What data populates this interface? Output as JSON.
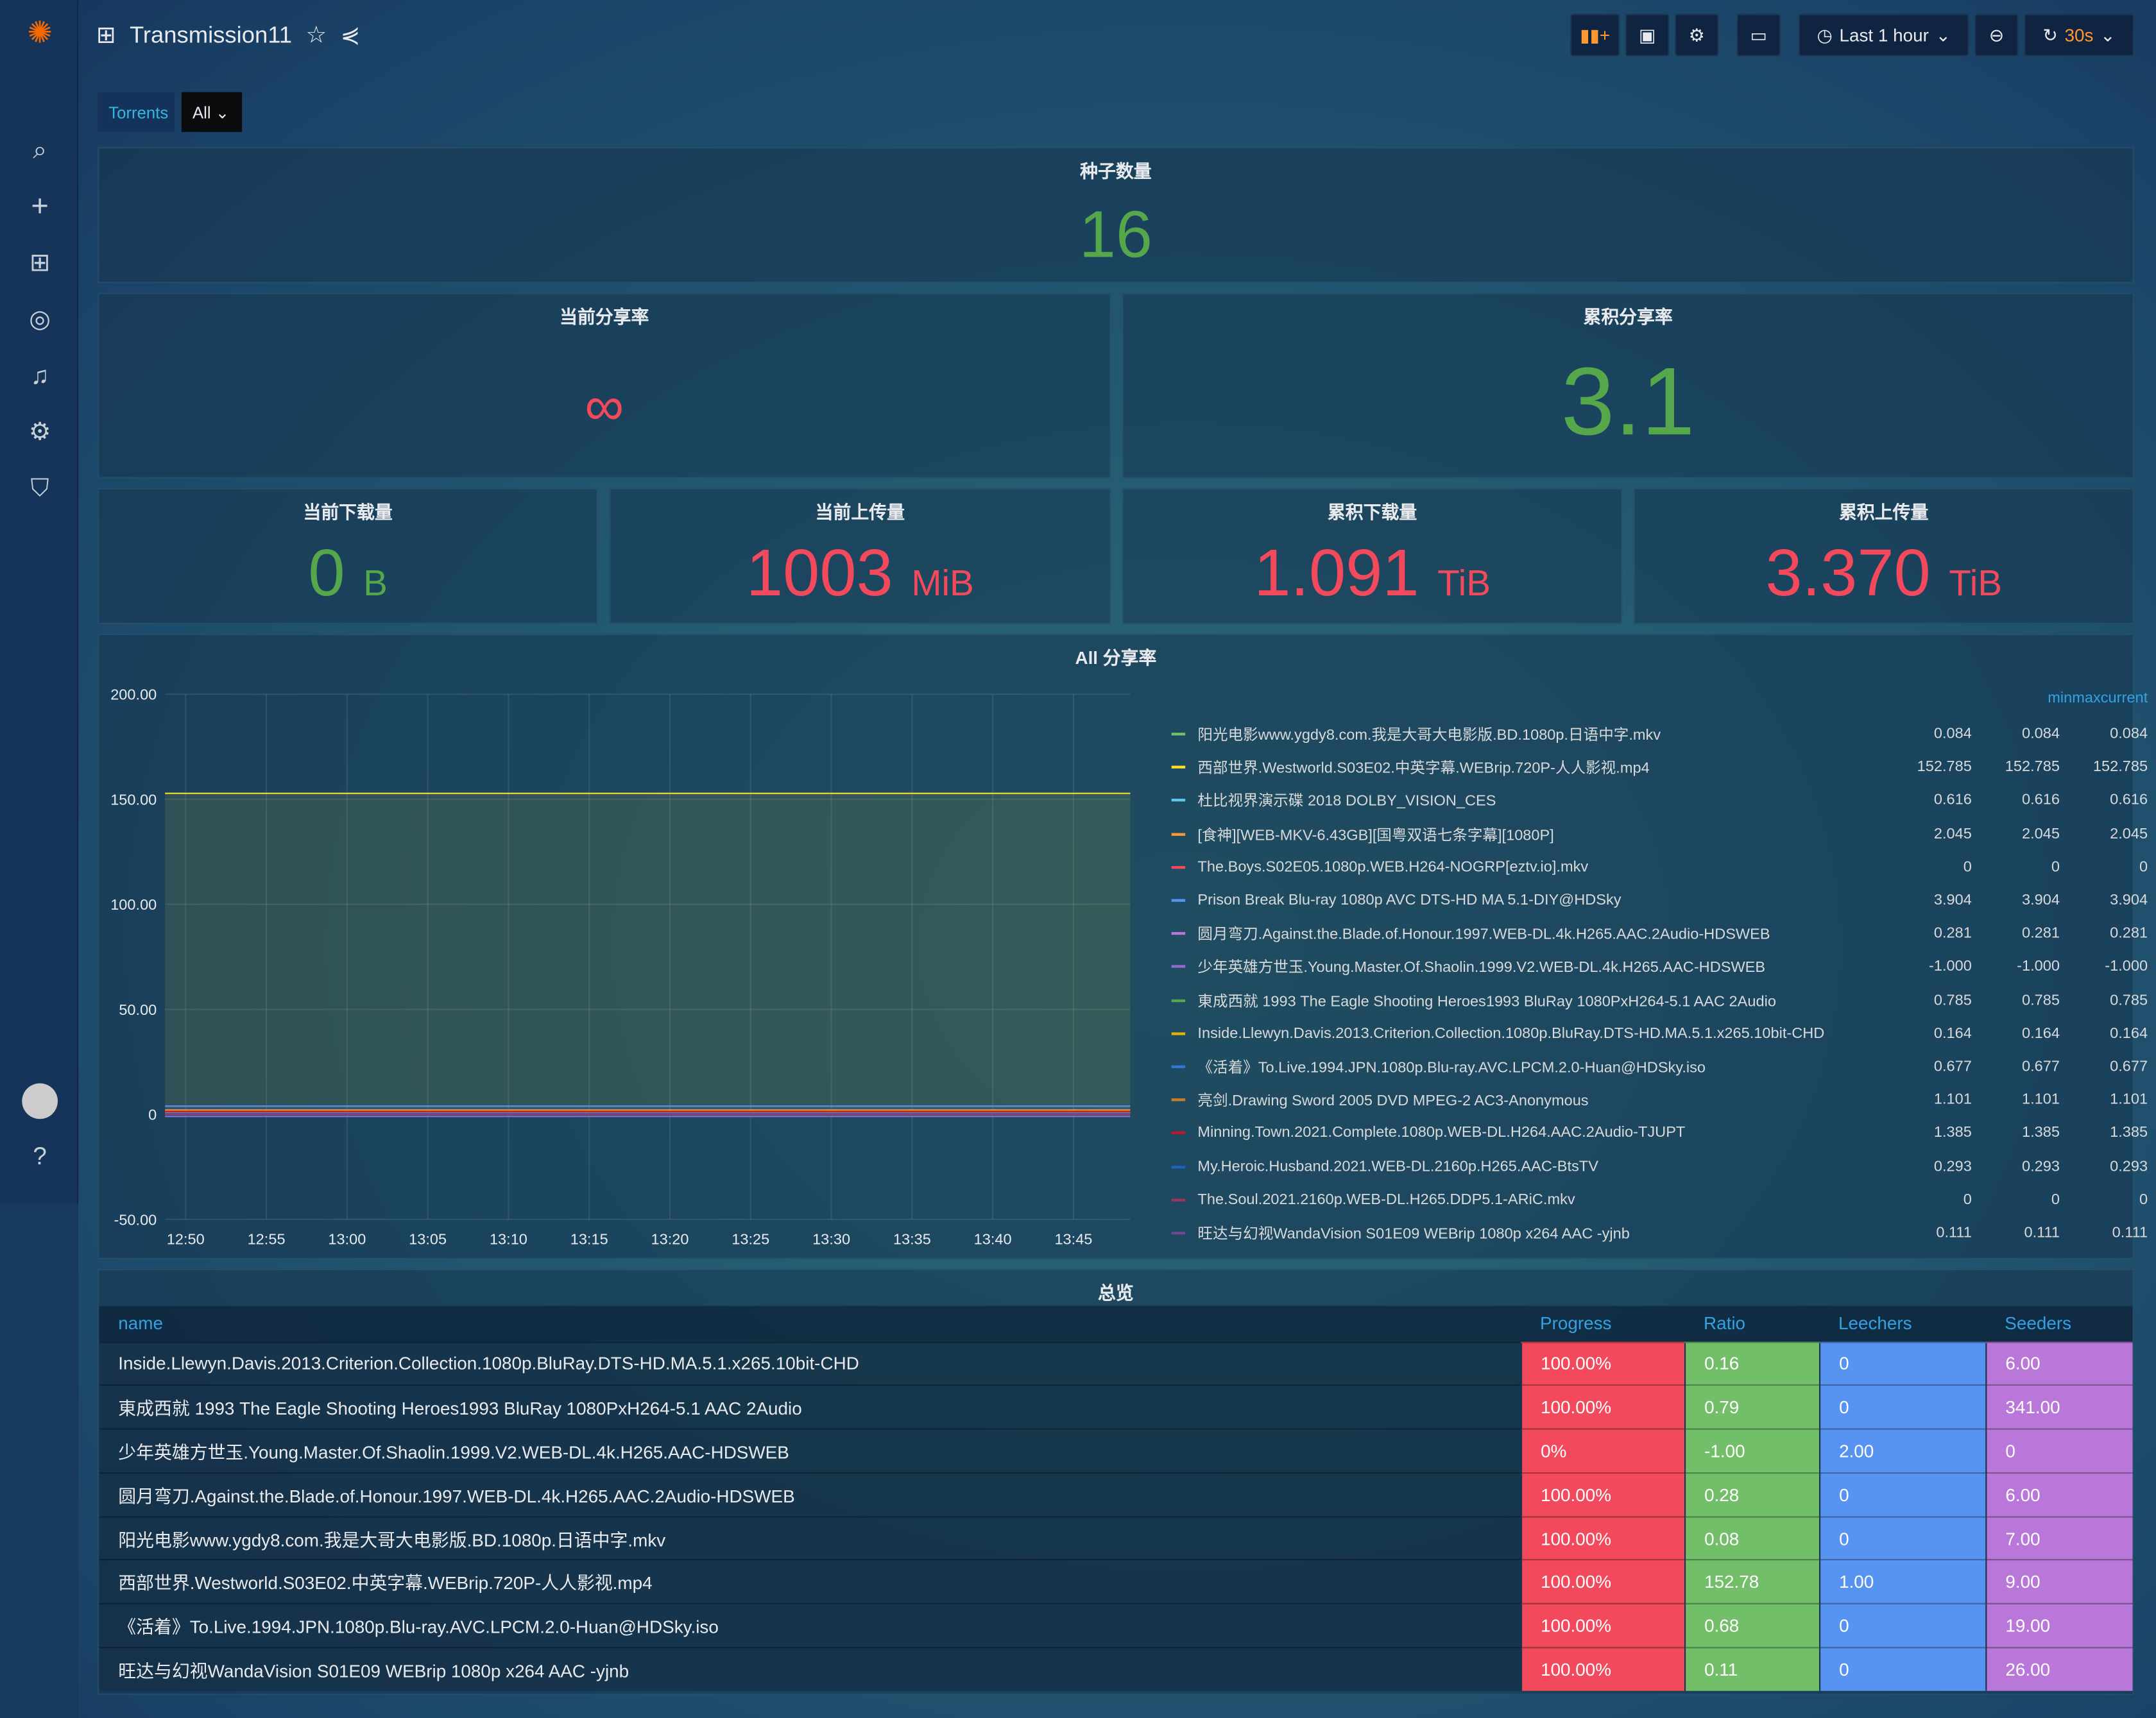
{
  "header": {
    "title": "Transmission11",
    "time_range": "Last 1 hour",
    "refresh": "30s"
  },
  "variables": {
    "label": "Torrents",
    "value": "All"
  },
  "stats": {
    "count": {
      "title": "种子数量",
      "value": "16"
    },
    "cur_ratio": {
      "title": "当前分享率",
      "value": "∞"
    },
    "total_ratio": {
      "title": "累积分享率",
      "value": "3.1"
    },
    "cur_dl": {
      "title": "当前下载量",
      "value": "0",
      "unit": "B"
    },
    "cur_ul": {
      "title": "当前上传量",
      "value": "1003",
      "unit": "MiB"
    },
    "total_dl": {
      "title": "累积下载量",
      "value": "1.091",
      "unit": "TiB"
    },
    "total_ul": {
      "title": "累积上传量",
      "value": "3.370",
      "unit": "TiB"
    }
  },
  "chart_data": {
    "type": "line",
    "title": "All 分享率",
    "x_ticks": [
      "12:50",
      "12:55",
      "13:00",
      "13:05",
      "13:10",
      "13:15",
      "13:20",
      "13:25",
      "13:30",
      "13:35",
      "13:40",
      "13:45"
    ],
    "y_ticks": [
      "200.00",
      "150.00",
      "100.00",
      "50.00",
      "0",
      "-50.00"
    ],
    "ylim": [
      -50,
      200
    ],
    "grid": true,
    "legend_placement": "right",
    "legend_columns": [
      "min",
      "max",
      "current"
    ],
    "series": [
      {
        "name": "阳光电影www.ygdy8.com.我是大哥大电影版.BD.1080p.日语中字.mkv",
        "color": "#73bf69",
        "min": "0.084",
        "max": "0.084",
        "current": "0.084",
        "value": 0.084
      },
      {
        "name": "西部世界.Westworld.S03E02.中英字幕.WEBrip.720P-人人影视.mp4",
        "color": "#fade2a",
        "min": "152.785",
        "max": "152.785",
        "current": "152.785",
        "value": 152.785
      },
      {
        "name": "杜比视界演示碟 2018 DOLBY_VISION_CES",
        "color": "#5ac8e8",
        "min": "0.616",
        "max": "0.616",
        "current": "0.616",
        "value": 0.616
      },
      {
        "name": "[食神][WEB-MKV-6.43GB][国粤双语七条字幕][1080P]",
        "color": "#ff9830",
        "min": "2.045",
        "max": "2.045",
        "current": "2.045",
        "value": 2.045
      },
      {
        "name": "The.Boys.S02E05.1080p.WEB.H264-NOGRP[eztv.io].mkv",
        "color": "#f2495c",
        "min": "0",
        "max": "0",
        "current": "0",
        "value": 0
      },
      {
        "name": "Prison Break Blu-ray 1080p AVC DTS-HD MA 5.1-DIY@HDSky",
        "color": "#5794f2",
        "min": "3.904",
        "max": "3.904",
        "current": "3.904",
        "value": 3.904
      },
      {
        "name": "圆月弯刀.Against.the.Blade.of.Honour.1997.WEB-DL.4k.H265.AAC.2Audio-HDSWEB",
        "color": "#b877d9",
        "min": "0.281",
        "max": "0.281",
        "current": "0.281",
        "value": 0.281
      },
      {
        "name": "少年英雄方世玉.Young.Master.Of.Shaolin.1999.V2.WEB-DL.4k.H265.AAC-HDSWEB",
        "color": "#8f6bd1",
        "min": "-1.000",
        "max": "-1.000",
        "current": "-1.000",
        "value": -1
      },
      {
        "name": "東成西就 1993 The Eagle Shooting Heroes1993 BluRay 1080PxH264-5.1 AAC 2Audio",
        "color": "#56a64b",
        "min": "0.785",
        "max": "0.785",
        "current": "0.785",
        "value": 0.785
      },
      {
        "name": "Inside.Llewyn.Davis.2013.Criterion.Collection.1080p.BluRay.DTS-HD.MA.5.1.x265.10bit-CHD",
        "color": "#e0b400",
        "min": "0.164",
        "max": "0.164",
        "current": "0.164",
        "value": 0.164
      },
      {
        "name": "《活着》To.Live.1994.JPN.1080p.Blu-ray.AVC.LPCM.2.0-Huan@HDSky.iso",
        "color": "#3274d9",
        "min": "0.677",
        "max": "0.677",
        "current": "0.677",
        "value": 0.677
      },
      {
        "name": "亮剑.Drawing Sword 2005 DVD MPEG-2 AC3-Anonymous",
        "color": "#c87f2a",
        "min": "1.101",
        "max": "1.101",
        "current": "1.101",
        "value": 1.101
      },
      {
        "name": "Minning.Town.2021.Complete.1080p.WEB-DL.H264.AAC.2Audio-TJUPT",
        "color": "#c4162a",
        "min": "1.385",
        "max": "1.385",
        "current": "1.385",
        "value": 1.385
      },
      {
        "name": "My.Heroic.Husband.2021.WEB-DL.2160p.H265.AAC-BtsTV",
        "color": "#1f60c4",
        "min": "0.293",
        "max": "0.293",
        "current": "0.293",
        "value": 0.293
      },
      {
        "name": "The.Soul.2021.2160p.WEB-DL.H265.DDP5.1-ARiC.mkv",
        "color": "#a1325a",
        "min": "0",
        "max": "0",
        "current": "0",
        "value": 0
      },
      {
        "name": "旺达与幻视WandaVision S01E09 WEBrip 1080p x264 AAC -yjnb",
        "color": "#6c4a8f",
        "min": "0.111",
        "max": "0.111",
        "current": "0.111",
        "value": 0.111
      }
    ]
  },
  "table": {
    "title": "总览",
    "columns": [
      "name",
      "Progress",
      "Ratio",
      "Leechers",
      "Seeders"
    ],
    "rows": [
      [
        "Inside.Llewyn.Davis.2013.Criterion.Collection.1080p.BluRay.DTS-HD.MA.5.1.x265.10bit-CHD",
        "100.00%",
        "0.16",
        "0",
        "6.00"
      ],
      [
        "東成西就 1993 The Eagle Shooting Heroes1993 BluRay 1080PxH264-5.1 AAC 2Audio",
        "100.00%",
        "0.79",
        "0",
        "341.00"
      ],
      [
        "少年英雄方世玉.Young.Master.Of.Shaolin.1999.V2.WEB-DL.4k.H265.AAC-HDSWEB",
        "0%",
        "-1.00",
        "2.00",
        "0"
      ],
      [
        "圆月弯刀.Against.the.Blade.of.Honour.1997.WEB-DL.4k.H265.AAC.2Audio-HDSWEB",
        "100.00%",
        "0.28",
        "0",
        "6.00"
      ],
      [
        "阳光电影www.ygdy8.com.我是大哥大电影版.BD.1080p.日语中字.mkv",
        "100.00%",
        "0.08",
        "0",
        "7.00"
      ],
      [
        "西部世界.Westworld.S03E02.中英字幕.WEBrip.720P-人人影视.mp4",
        "100.00%",
        "152.78",
        "1.00",
        "9.00"
      ],
      [
        "《活着》To.Live.1994.JPN.1080p.Blu-ray.AVC.LPCM.2.0-Huan@HDSky.iso",
        "100.00%",
        "0.68",
        "0",
        "19.00"
      ],
      [
        "旺达与幻视WandaVision S01E09 WEBrip 1080p x264 AAC -yjnb",
        "100.00%",
        "0.11",
        "0",
        "26.00"
      ]
    ]
  }
}
